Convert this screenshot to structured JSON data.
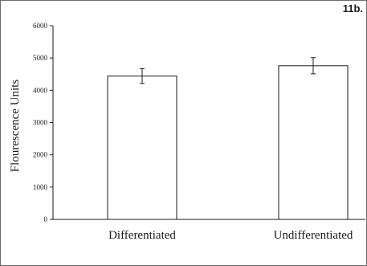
{
  "panel_label": "11b.",
  "chart_data": {
    "type": "bar",
    "categories": [
      "Differentiated",
      "Undifferentiated"
    ],
    "values": [
      4440,
      4760
    ],
    "errors": [
      230,
      250
    ],
    "ylabel": "Flourescence Units",
    "xlabel": "",
    "ylim": [
      0,
      6000
    ],
    "yticks": [
      "0",
      "1000",
      "2000",
      "3000",
      "4000",
      "5000",
      "6000"
    ],
    "grid": false,
    "bar_fill": "#ffffff",
    "bar_stroke": "#1a1a1a"
  }
}
